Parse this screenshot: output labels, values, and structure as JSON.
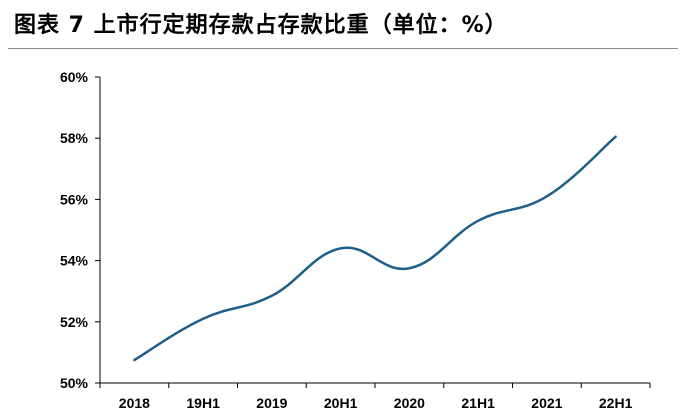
{
  "title": "图表 7  上市行定期存款占存款比重（单位：%）",
  "chart_data": {
    "type": "line",
    "categories": [
      "2018",
      "19H1",
      "2019",
      "20H1",
      "2020",
      "21H1",
      "2021",
      "22H1"
    ],
    "series": [
      {
        "values": [
          50.75,
          52.1,
          52.85,
          54.4,
          53.75,
          55.3,
          56.1,
          58.05
        ]
      }
    ],
    "yticks": [
      "50%",
      "52%",
      "54%",
      "56%",
      "58%",
      "60%"
    ],
    "ylim": [
      50,
      60
    ],
    "line_color": "#1f5f8b",
    "grid": false,
    "legend": "none"
  }
}
